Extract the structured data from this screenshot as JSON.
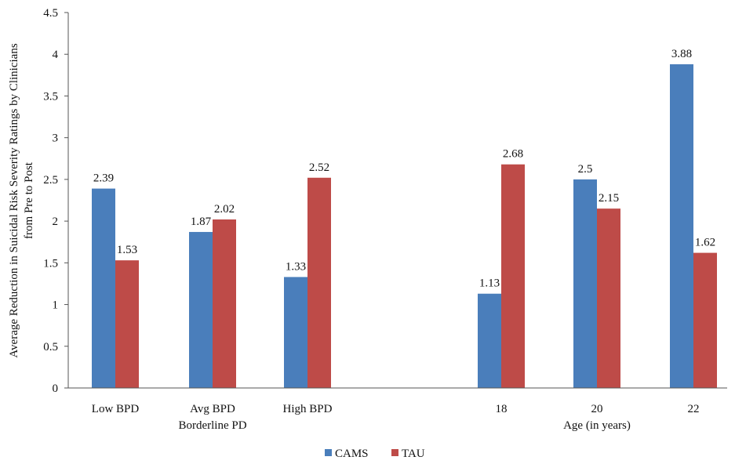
{
  "chart_data": {
    "type": "bar",
    "ylabel_lines": [
      "Average Reduction in Suicidal Risk Severity Ratings by Clinicians",
      "from Pre to Post"
    ],
    "ylim": [
      0,
      4.5
    ],
    "yticks": [
      "0",
      "0.5",
      "1",
      "1.5",
      "2",
      "2.5",
      "3",
      "3.5",
      "4",
      "4.5"
    ],
    "grid": false,
    "legend_position": "bottom",
    "groups": [
      {
        "label": "Borderline PD",
        "categories": [
          "Low BPD",
          "Avg BPD",
          "High BPD"
        ]
      },
      {
        "label": "Age (in years)",
        "categories": [
          "18",
          "20",
          "22"
        ]
      }
    ],
    "categories": [
      "Low BPD",
      "Avg BPD",
      "High BPD",
      "18",
      "20",
      "22"
    ],
    "series": [
      {
        "name": "CAMS",
        "color": "#4a7ebb",
        "values": [
          2.39,
          1.87,
          1.33,
          1.13,
          2.5,
          3.88
        ]
      },
      {
        "name": "TAU",
        "color": "#be4b48",
        "values": [
          1.53,
          2.02,
          2.52,
          2.68,
          2.15,
          1.62
        ]
      }
    ],
    "data_labels": [
      [
        "2.39",
        "1.87",
        "1.33",
        "1.13",
        "2.5",
        "3.88"
      ],
      [
        "1.53",
        "2.02",
        "2.52",
        "2.68",
        "2.15",
        "1.62"
      ]
    ]
  }
}
